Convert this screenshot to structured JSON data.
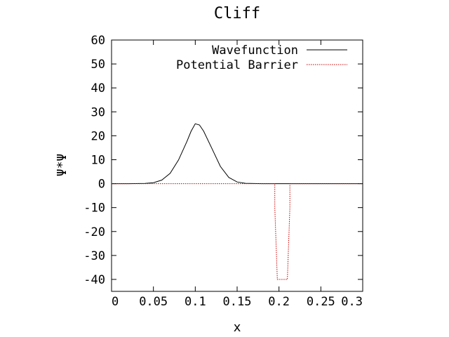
{
  "chart_data": {
    "type": "line",
    "title": "Cliff",
    "xlabel": "x",
    "ylabel": "Ψ*Ψ",
    "xlim": [
      0,
      0.3
    ],
    "ylim": [
      -45,
      60
    ],
    "xticks": [
      0,
      0.05,
      0.1,
      0.15,
      0.2,
      0.25,
      0.3
    ],
    "xtick_labels": [
      "0",
      "0.05",
      "0.1",
      "0.15",
      "0.2",
      "0.25",
      "0.3"
    ],
    "yticks": [
      -40,
      -30,
      -20,
      -10,
      0,
      10,
      20,
      30,
      40,
      50,
      60
    ],
    "ytick_labels": [
      "-40",
      "-30",
      "-20",
      "-10",
      "0",
      "10",
      "20",
      "30",
      "40",
      "50",
      "60"
    ],
    "grid": false,
    "legend_position": "top-right",
    "series": [
      {
        "name": "Wavefunction",
        "color": "#000000",
        "style": "solid",
        "x": [
          0,
          0.02,
          0.04,
          0.05,
          0.06,
          0.07,
          0.08,
          0.09,
          0.095,
          0.1,
          0.105,
          0.11,
          0.12,
          0.13,
          0.14,
          0.15,
          0.16,
          0.18,
          0.2,
          0.25,
          0.3
        ],
        "y": [
          0,
          0,
          0.08,
          0.4,
          1.5,
          4.3,
          9.9,
          17.6,
          21.9,
          25,
          24.5,
          21.9,
          14.6,
          7.2,
          2.6,
          0.7,
          0.14,
          0,
          0,
          0,
          0
        ]
      },
      {
        "name": "Potential Barrier",
        "color": "#cc0000",
        "style": "dotted",
        "x": [
          0,
          0.195,
          0.195,
          0.198,
          0.21,
          0.213,
          0.213,
          0.3
        ],
        "y": [
          0,
          0,
          -10,
          -40,
          -40,
          -10,
          0,
          0
        ]
      }
    ]
  }
}
